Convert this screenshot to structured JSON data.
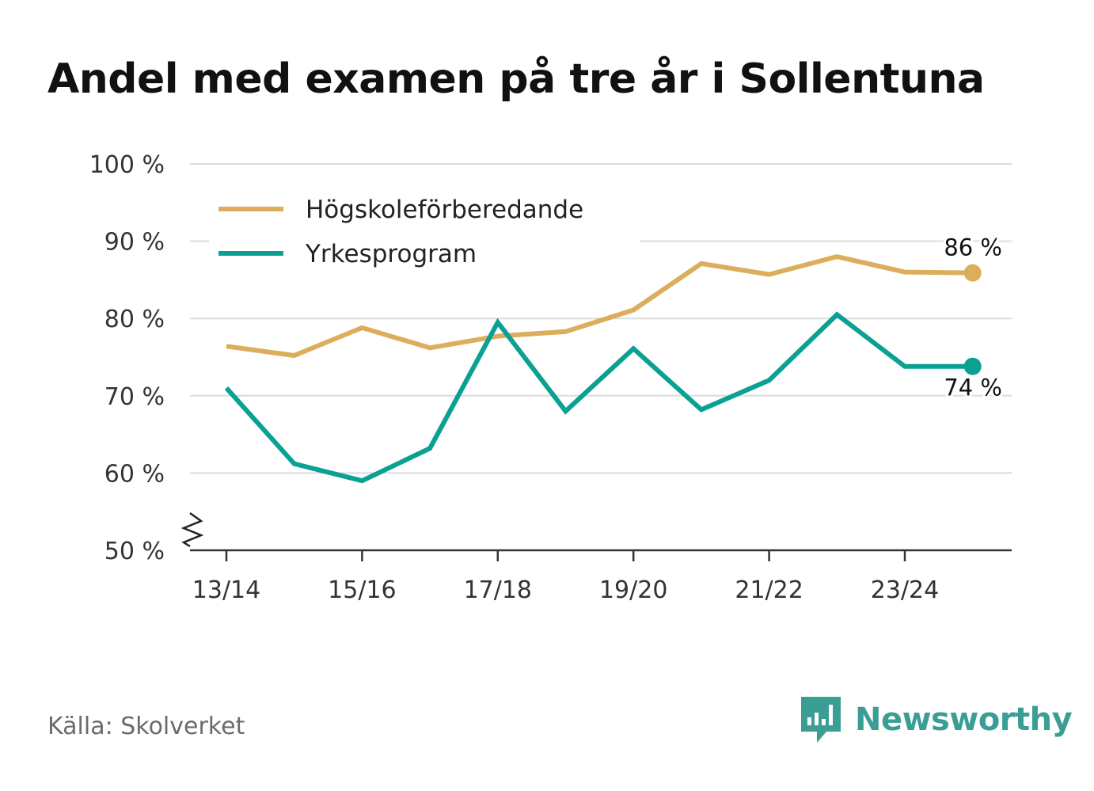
{
  "title": "Andel med examen på tre år i Sollentuna",
  "source": "Källa: Skolverket",
  "brand": {
    "name": "Newsworthy",
    "color": "#3a9e94",
    "icon": "newsworthy-logo-icon"
  },
  "chart_data": {
    "type": "line",
    "title": "Andel med examen på tre år i Sollentuna",
    "xlabel": "",
    "ylabel": "",
    "categories": [
      "13/14",
      "14/15",
      "15/16",
      "16/17",
      "17/18",
      "18/19",
      "19/20",
      "20/21",
      "21/22",
      "22/23",
      "23/24",
      "24/25"
    ],
    "x_tick_labels": [
      "13/14",
      "15/16",
      "17/18",
      "19/20",
      "21/22",
      "23/24"
    ],
    "y_tick_labels": [
      "50 %",
      "60 %",
      "70 %",
      "80 %",
      "90 %",
      "100 %"
    ],
    "ylim": [
      50,
      100
    ],
    "y_ticks": [
      50,
      60,
      70,
      80,
      90,
      100
    ],
    "y_axis_break": true,
    "grid": true,
    "legend_position": "top-left",
    "series": [
      {
        "name": "Högskoleförberedande",
        "color": "#dcad5b",
        "values": [
          76.4,
          75.2,
          78.8,
          76.2,
          77.7,
          78.3,
          81.1,
          87.1,
          85.7,
          88.0,
          86.0,
          85.9
        ],
        "end_label": "86 %",
        "end_label_placement": "above"
      },
      {
        "name": "Yrkesprogram",
        "color": "#0ba094",
        "values": [
          71.0,
          61.2,
          59.0,
          63.2,
          79.5,
          68.0,
          76.1,
          68.2,
          72.0,
          80.5,
          73.8,
          73.8
        ],
        "end_label": "74 %",
        "end_label_placement": "below"
      }
    ]
  }
}
